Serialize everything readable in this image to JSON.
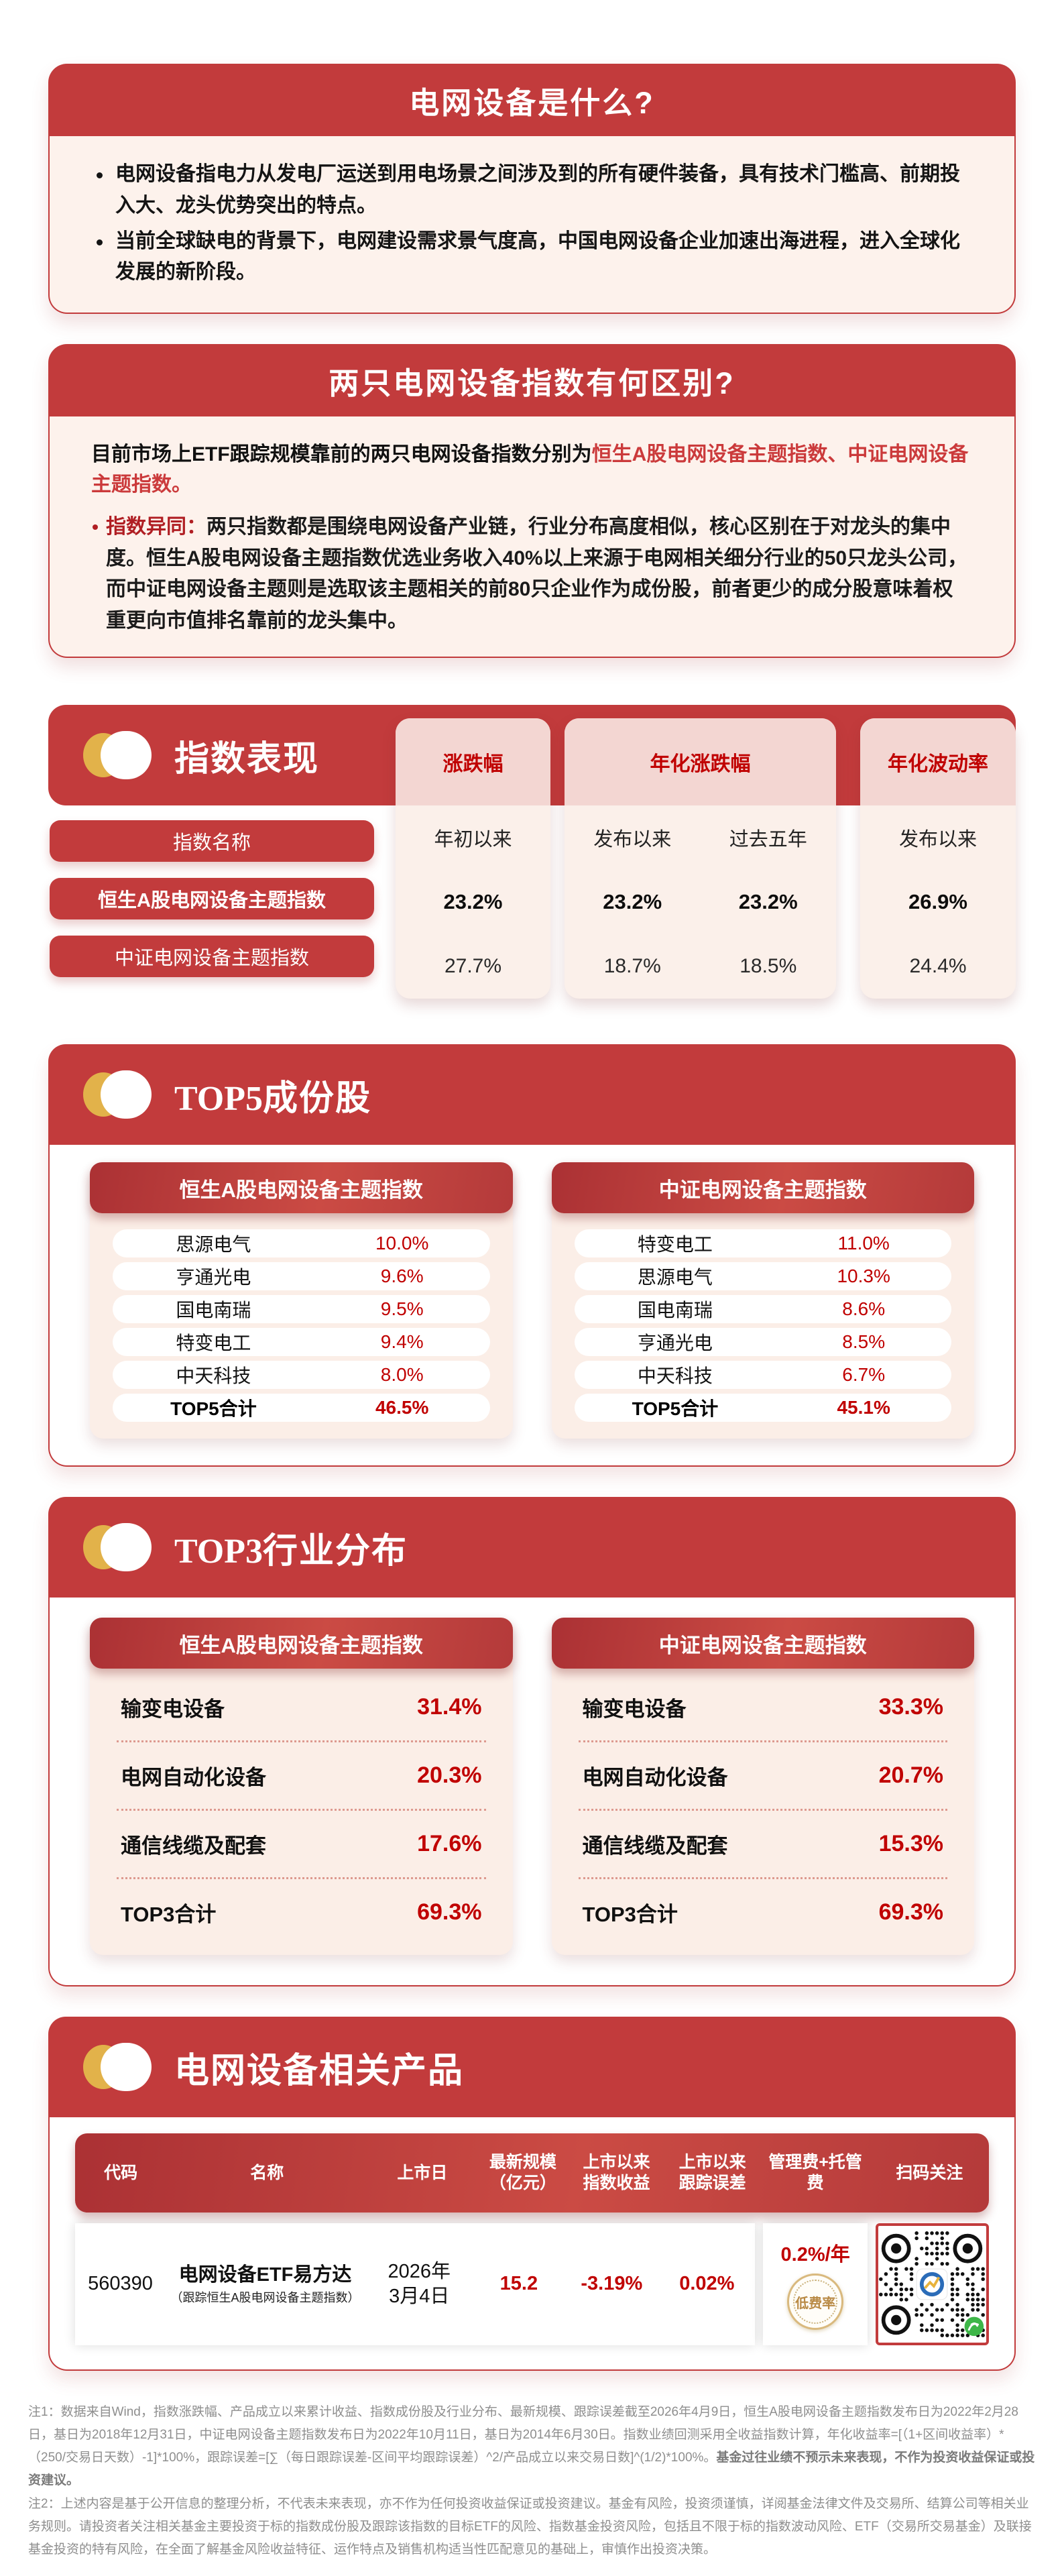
{
  "colors": {
    "primary_red": "#c23b3c",
    "value_red": "#c00000",
    "cream_bg": "#fdf2ec",
    "pink_panel": "#fbeee7",
    "gold": "#e2b24a"
  },
  "card1": {
    "title": "电网设备是什么?",
    "bullets": [
      "电网设备指电力从发电厂运送到用电场景之间涉及到的所有硬件装备，具有技术门槛高、前期投入大、龙头优势突出的特点。",
      "当前全球缺电的背景下，电网建设需求景气度高，中国电网设备企业加速出海进程，进入全球化发展的新阶段。"
    ]
  },
  "card2": {
    "title": "两只电网设备指数有何区别?",
    "intro_plain": "目前市场上ETF跟踪规模靠前的两只电网设备指数分别为",
    "intro_red": "恒生A股电网设备主题指数、中证电网设备主题指数。",
    "diff_label": "指数异同：",
    "diff_body": "两只指数都是围绕电网设备产业链，行业分布高度相似，核心区别在于对龙头的集中度。恒生A股电网设备主题指数优选业务收入40%以上来源于电网相关细分行业的50只龙头公司，而中证电网设备主题则是选取该主题相关的前80只企业作为成份股，前者更少的成分股意味着权重更向市值排名靠前的龙头集中。"
  },
  "performance": {
    "title": "指数表现",
    "row_header": "指数名称",
    "groups": [
      {
        "label": "涨跌幅",
        "subs": [
          "年初以来"
        ]
      },
      {
        "label": "年化涨跌幅",
        "subs": [
          "发布以来",
          "过去五年"
        ]
      },
      {
        "label": "年化波动率",
        "subs": [
          "发布以来"
        ]
      }
    ],
    "rows": [
      {
        "name": "恒生A股电网设备主题指数",
        "values": [
          "23.2%",
          "23.2%",
          "23.2%",
          "26.9%"
        ]
      },
      {
        "name": "中证电网设备主题指数",
        "values": [
          "27.7%",
          "18.7%",
          "18.5%",
          "24.4%"
        ]
      }
    ]
  },
  "top5": {
    "title_en": "TOP5",
    "title_zh": "成份股",
    "panels": [
      {
        "title": "恒生A股电网设备主题指数",
        "rows": [
          [
            "思源电气",
            "10.0%"
          ],
          [
            "亨通光电",
            "9.6%"
          ],
          [
            "国电南瑞",
            "9.5%"
          ],
          [
            "特变电工",
            "9.4%"
          ],
          [
            "中天科技",
            "8.0%"
          ]
        ],
        "total": [
          "TOP5合计",
          "46.5%"
        ]
      },
      {
        "title": "中证电网设备主题指数",
        "rows": [
          [
            "特变电工",
            "11.0%"
          ],
          [
            "思源电气",
            "10.3%"
          ],
          [
            "国电南瑞",
            "8.6%"
          ],
          [
            "亨通光电",
            "8.5%"
          ],
          [
            "中天科技",
            "6.7%"
          ]
        ],
        "total": [
          "TOP5合计",
          "45.1%"
        ]
      }
    ]
  },
  "top3": {
    "title_en": "TOP3",
    "title_zh": "行业分布",
    "panels": [
      {
        "title": "恒生A股电网设备主题指数",
        "rows": [
          [
            "输变电设备",
            "31.4%"
          ],
          [
            "电网自动化设备",
            "20.3%"
          ],
          [
            "通信线缆及配套",
            "17.6%"
          ]
        ],
        "total": [
          "TOP3合计",
          "69.3%"
        ]
      },
      {
        "title": "中证电网设备主题指数",
        "rows": [
          [
            "输变电设备",
            "33.3%"
          ],
          [
            "电网自动化设备",
            "20.7%"
          ],
          [
            "通信线缆及配套",
            "15.3%"
          ]
        ],
        "total": [
          "TOP3合计",
          "69.3%"
        ]
      }
    ]
  },
  "products": {
    "title": "电网设备相关产品",
    "headers": [
      "代码",
      "名称",
      "上市日",
      "最新规模\n（亿元）",
      "上市以来\n指数收益",
      "上市以来\n跟踪误差",
      "管理费+托管费",
      "扫码关注"
    ],
    "row": {
      "code": "560390",
      "name": "电网设备ETF易方达",
      "name_note": "（跟踪恒生A股电网设备主题指数）",
      "list_date": "2026年\n3月4日",
      "scale": "15.2",
      "index_return": "-3.19%",
      "tracking_error": "0.02%",
      "fee": "0.2%/年",
      "fee_badge": "低费率"
    }
  },
  "footnotes": {
    "note1": "注1：数据来自Wind，指数涨跌幅、产品成立以来累计收益、指数成份股及行业分布、最新规模、跟踪误差截至2026年4月9日，恒生A股电网设备主题指数发布日为2022年2月28日，基日为2018年12月31日，中证电网设备主题指数发布日为2022年10月11日，基日为2014年6月30日。指数业绩回测采用全收益指数计算，年化收益率=[（1+区间收益率）*（250/交易日天数）-1]*100%，跟踪误差=[∑（每日跟踪误差-区间平均跟踪误差）^2/产品成立以来交易日数]^(1/2)*100%。",
    "note1_bold": "基金过往业绩不预示未来表现，不作为投资收益保证或投资建议。",
    "note2": "注2：上述内容是基于公开信息的整理分析，不代表未来表现，亦不作为任何投资收益保证或投资建议。基金有风险，投资须谨慎，详阅基金法律文件及交易所、结算公司等相关业务规则。请投资者关注相关基金主要投资于标的指数成份股及跟踪该指数的目标ETF的风险、指数基金投资风险，包括且不限于标的指数波动风险、ETF（交易所交易基金）及联接基金投资的特有风险，在全面了解基金风险收益特征、运作特点及销售机构适当性匹配意见的基础上，审慎作出投资决策。"
  }
}
